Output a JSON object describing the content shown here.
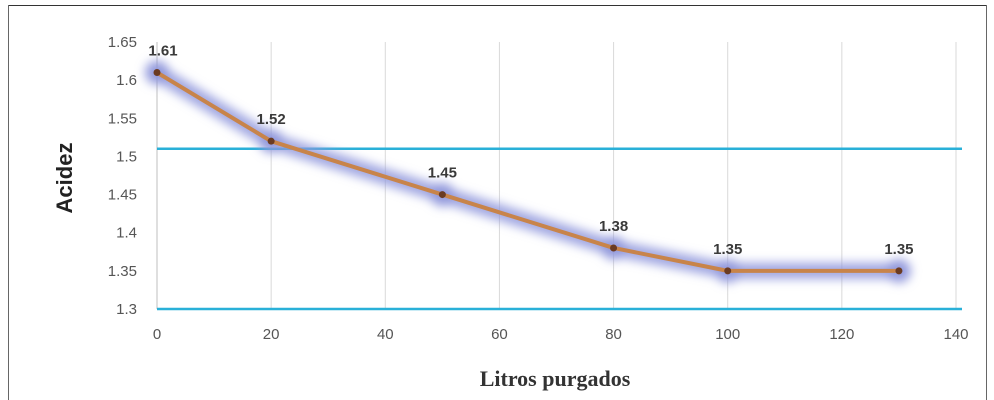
{
  "chart_data": {
    "type": "line",
    "title": "",
    "xlabel": "Litros purgados",
    "ylabel": "Acidez",
    "x": [
      0,
      20,
      50,
      80,
      100,
      130
    ],
    "series": [
      {
        "values": [
          1.61,
          1.52,
          1.45,
          1.38,
          1.35,
          1.35
        ],
        "labels": [
          "1.61",
          "1.52",
          "1.45",
          "1.38",
          "1.35",
          "1.35"
        ]
      }
    ],
    "reference_lines": [
      1.51,
      1.3
    ],
    "xlim": [
      0,
      140
    ],
    "ylim": [
      1.3,
      1.65
    ],
    "xticks": [
      0,
      20,
      40,
      60,
      80,
      100,
      120,
      140
    ],
    "yticks": [
      1.3,
      1.35,
      1.4,
      1.45,
      1.5,
      1.55,
      1.6,
      1.65
    ],
    "grid": "vertical",
    "legend": "none",
    "colors": {
      "line": "#c8844a",
      "glow": "#8f96dc",
      "marker": "#6b3b22",
      "reference": "#29b0d8",
      "grid": "#d9d9d9",
      "axis": "#bfbfbf"
    }
  }
}
